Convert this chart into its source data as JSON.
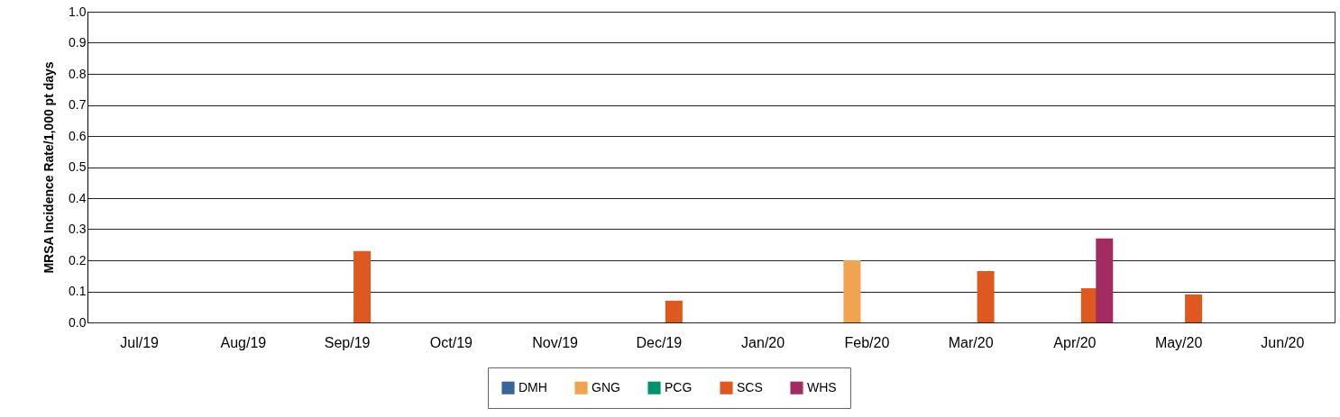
{
  "chart_data": {
    "type": "bar",
    "ylabel": "MRSA Incidence Rate/1,000 pt days",
    "categories": [
      "Jul/19",
      "Aug/19",
      "Sep/19",
      "Oct/19",
      "Nov/19",
      "Dec/19",
      "Jan/20",
      "Feb/20",
      "Mar/20",
      "Apr/20",
      "May/20",
      "Jun/20"
    ],
    "series": [
      {
        "name": "DMH",
        "color": "#3a6599",
        "values": [
          0,
          0,
          0,
          0,
          0,
          0,
          0,
          0,
          0,
          0,
          0,
          0
        ]
      },
      {
        "name": "GNG",
        "color": "#f0a451",
        "values": [
          0,
          0,
          0,
          0,
          0,
          0,
          0,
          0.2,
          0,
          0,
          0,
          0
        ]
      },
      {
        "name": "PCG",
        "color": "#009270",
        "values": [
          0,
          0,
          0,
          0,
          0,
          0,
          0,
          0,
          0,
          0,
          0,
          0
        ]
      },
      {
        "name": "SCS",
        "color": "#de5920",
        "values": [
          0,
          0,
          0.23,
          0,
          0,
          0.07,
          0,
          0,
          0.165,
          0.11,
          0.09,
          0
        ]
      },
      {
        "name": "WHS",
        "color": "#a22b62",
        "values": [
          0,
          0,
          0,
          0,
          0,
          0,
          0,
          0,
          0,
          0.27,
          0,
          0
        ]
      }
    ],
    "ylim": [
      0,
      1
    ],
    "yticks": [
      {
        "value": 0,
        "label": "0.0"
      },
      {
        "value": 0.1,
        "label": "0.1"
      },
      {
        "value": 0.2,
        "label": "0.2"
      },
      {
        "value": 0.3,
        "label": "0.3"
      },
      {
        "value": 0.4,
        "label": "0.4"
      },
      {
        "value": 0.5,
        "label": "0.5"
      },
      {
        "value": 0.6,
        "label": "0.6"
      },
      {
        "value": 0.7,
        "label": "0.7"
      },
      {
        "value": 0.8,
        "label": "0.8"
      },
      {
        "value": 0.9,
        "label": "0.9"
      },
      {
        "value": 1,
        "label": "1.0"
      }
    ],
    "grid": "y",
    "legend": "bottom"
  }
}
